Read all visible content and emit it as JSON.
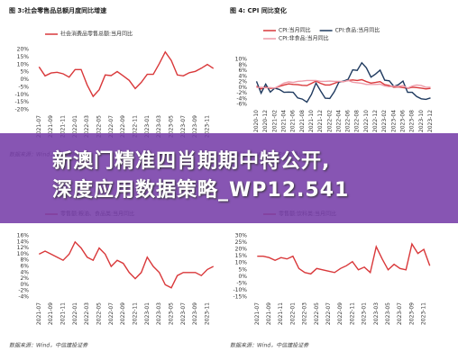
{
  "chart_data": [
    {
      "type": "line",
      "title": "图 3:社会零售品总额月度同比增速",
      "source": "数据来源：Wind，中信建投证券",
      "categories": [
        "2021-07",
        null,
        "2021-09",
        null,
        "2021-11",
        null,
        "2022-01",
        null,
        "2022-03",
        null,
        "2022-05",
        null,
        "2022-07",
        null,
        "2022-09",
        null,
        "2022-11",
        null,
        "2023-01",
        null,
        "2023-03",
        null,
        "2023-05",
        null,
        "2023-07",
        null,
        "2023-09",
        null,
        "2023-11",
        null
      ],
      "series": [
        {
          "name": "社会消费品零售总额:当月同比",
          "color": "#d9383a",
          "values": [
            8.5,
            2.5,
            4.4,
            4.9,
            3.9,
            1.7,
            6.7,
            6.7,
            -3.5,
            -11.1,
            -6.7,
            3.1,
            2.7,
            5.4,
            2.5,
            -0.5,
            -5.9,
            -1.8,
            3.5,
            3.5,
            10.6,
            18.4,
            12.7,
            3.1,
            2.5,
            4.6,
            5.5,
            7.6,
            10.1,
            7.4
          ]
        }
      ],
      "ylim": [
        -20,
        20
      ],
      "yticks": [
        {
          "value": -20,
          "label": "-20%"
        },
        {
          "value": -15,
          "label": "-15%"
        },
        {
          "value": -10,
          "label": "-10%"
        },
        {
          "value": -5,
          "label": "-5%"
        },
        {
          "value": 0,
          "label": "0%"
        },
        {
          "value": 5,
          "label": "5%"
        },
        {
          "value": 10,
          "label": "10%"
        },
        {
          "value": 15,
          "label": "15%"
        },
        {
          "value": 20,
          "label": "20%"
        }
      ]
    },
    {
      "type": "line",
      "title": "图 4: CPI 同比变化",
      "source": "数据来源：Wind，中信建投证券",
      "categories": [
        "2020-10",
        null,
        "2020-12",
        null,
        "2021-02",
        null,
        "2021-04",
        null,
        "2021-06",
        null,
        "2021-08",
        null,
        "2021-10",
        null,
        "2021-12",
        null,
        "2022-02",
        null,
        "2022-04",
        null,
        "2022-06",
        null,
        "2022-08",
        null,
        "2022-10",
        null,
        "2022-12",
        null,
        "2023-02",
        null,
        "2023-04",
        null,
        "2023-06",
        null,
        "2023-08",
        null,
        "2023-10",
        null,
        "2023-12"
      ],
      "series": [
        {
          "name": "CPI:当月同比",
          "color": "#d9383a",
          "values": [
            0.5,
            -0.5,
            0.2,
            -0.3,
            -0.2,
            0.4,
            0.9,
            1.3,
            1.1,
            1.0,
            0.8,
            0.7,
            1.5,
            2.3,
            1.5,
            0.9,
            0.9,
            1.5,
            2.1,
            2.1,
            2.5,
            2.7,
            2.5,
            2.8,
            2.1,
            1.6,
            1.8,
            2.1,
            1.0,
            0.7,
            0.1,
            0.2,
            0.0,
            -0.3,
            0.1,
            0.0,
            -0.2,
            -0.5,
            -0.3
          ]
        },
        {
          "name": "CPI:食品:当月同比",
          "color": "#1f3a5f",
          "values": [
            2.2,
            -2.0,
            1.2,
            -1.6,
            -0.2,
            -0.7,
            -1.7,
            -1.6,
            -1.7,
            -3.7,
            -4.1,
            -5.2,
            -2.4,
            1.6,
            -1.2,
            -3.8,
            -3.9,
            -1.5,
            1.9,
            2.3,
            2.9,
            6.3,
            6.1,
            8.8,
            7.0,
            3.7,
            4.8,
            6.2,
            2.6,
            2.4,
            0.4,
            1.0,
            2.3,
            -1.7,
            -1.7,
            -3.2,
            -4.0,
            -4.2,
            -3.7
          ]
        },
        {
          "name": "CPI:非食品:当月同比",
          "color": "#ee9aa8",
          "values": [
            0.0,
            0.1,
            -0.1,
            0.0,
            -0.2,
            0.7,
            1.6,
            2.0,
            1.8,
            2.2,
            2.3,
            2.5,
            2.5,
            2.5,
            2.2,
            2.2,
            2.3,
            2.2,
            2.2,
            2.1,
            2.5,
            1.9,
            1.7,
            1.5,
            1.1,
            1.1,
            1.1,
            1.2,
            0.6,
            0.3,
            0.5,
            0.4,
            0.7,
            -0.2,
            0.5,
            0.9,
            0.7,
            0.1,
            0.1
          ]
        }
      ],
      "ylim": [
        -6,
        10
      ],
      "yticks": [
        {
          "value": -6,
          "label": "-6%"
        },
        {
          "value": -4,
          "label": "-4%"
        },
        {
          "value": -2,
          "label": "-2%"
        },
        {
          "value": 0,
          "label": "0%"
        },
        {
          "value": 2,
          "label": "2%"
        },
        {
          "value": 4,
          "label": "4%"
        },
        {
          "value": 6,
          "label": "6%"
        },
        {
          "value": 8,
          "label": "8%"
        },
        {
          "value": 10,
          "label": "10%"
        }
      ]
    },
    {
      "type": "line",
      "source": "数据来源：Wind，中信建投证券",
      "categories": [
        "2021-07",
        null,
        "2021-09",
        null,
        "2021-11",
        null,
        "2022-01",
        null,
        "2022-03",
        null,
        "2022-05",
        null,
        "2022-07",
        null,
        "2022-09",
        null,
        "2022-11",
        null,
        "2023-01",
        null,
        "2023-03",
        null,
        "2023-05",
        null,
        "2023-07",
        null,
        "2023-09",
        null,
        "2023-11",
        null
      ],
      "series": [
        {
          "name": "零售额:粮油、食品类:当月同比",
          "color": "#d9383a",
          "values": [
            10,
            11,
            10,
            9,
            8,
            10,
            14,
            12,
            9,
            8,
            12,
            10,
            6,
            8,
            7,
            4,
            2,
            4,
            9,
            6,
            4,
            0,
            -1,
            3,
            4,
            4,
            4,
            3,
            5,
            6
          ]
        }
      ],
      "ylim": [
        -4,
        16
      ],
      "yticks": [
        {
          "value": -4,
          "label": "-4%"
        },
        {
          "value": -2,
          "label": "-2%"
        },
        {
          "value": 0,
          "label": "0%"
        },
        {
          "value": 2,
          "label": "2%"
        },
        {
          "value": 4,
          "label": "4%"
        },
        {
          "value": 6,
          "label": "6%"
        },
        {
          "value": 8,
          "label": "8%"
        },
        {
          "value": 10,
          "label": "10%"
        },
        {
          "value": 12,
          "label": "12%"
        },
        {
          "value": 14,
          "label": "14%"
        },
        {
          "value": 16,
          "label": "16%"
        }
      ]
    },
    {
      "type": "line",
      "source": "数据来源：Wind，中信建投证券",
      "categories": [
        "2021-07",
        null,
        "2021-09",
        null,
        "2021-11",
        null,
        "2022-01",
        null,
        "2022-03",
        null,
        "2022-05",
        null,
        "2022-07",
        null,
        "2022-09",
        null,
        "2022-11",
        null,
        "2023-01",
        null,
        "2023-03",
        null,
        "2023-05",
        null,
        "2023-07",
        null,
        "2023-09",
        null,
        "2023-11",
        null
      ],
      "series": [
        {
          "name": "零售额:饮料类:当月同比",
          "color": "#d9383a",
          "values": [
            15,
            15,
            14,
            12,
            14,
            13,
            15,
            6,
            3,
            2,
            6,
            5,
            4,
            3,
            6,
            8,
            11,
            5,
            7,
            3,
            22,
            13,
            5,
            9,
            6,
            5,
            24,
            17,
            20,
            8
          ]
        }
      ],
      "ylim": [
        -15,
        30
      ],
      "yticks": [
        {
          "value": -15,
          "label": "-15%"
        },
        {
          "value": -10,
          "label": "-10%"
        },
        {
          "value": -5,
          "label": "-5%"
        },
        {
          "value": 0,
          "label": "0%"
        },
        {
          "value": 5,
          "label": "5%"
        },
        {
          "value": 10,
          "label": "10%"
        },
        {
          "value": 15,
          "label": "15%"
        },
        {
          "value": 20,
          "label": "20%"
        },
        {
          "value": 25,
          "label": "25%"
        },
        {
          "value": 30,
          "label": "30%"
        }
      ]
    }
  ],
  "banner": [
    "新澳门精准四肖期期中特公开,",
    "深度应用数据策略_WP12.541"
  ]
}
